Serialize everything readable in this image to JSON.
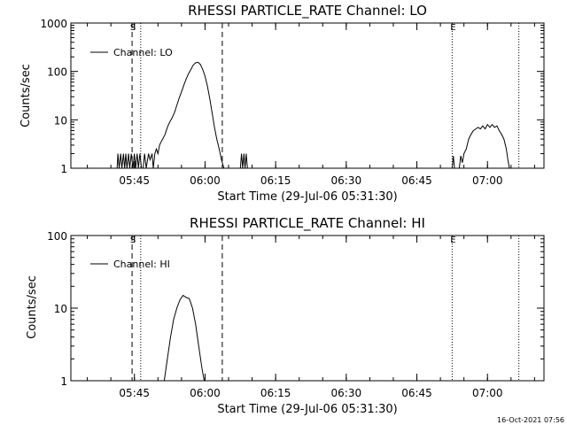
{
  "timestamp": "16-Oct-2021 07:56",
  "chart_data": [
    {
      "type": "line",
      "title": "RHESSI PARTICLE_RATE Channel: LO",
      "xlabel": "Start Time (29-Jul-06 05:31:30)",
      "ylabel": "Counts/sec",
      "y_scale": "log",
      "ylim": [
        1,
        1000
      ],
      "yticks": [
        {
          "v": 1,
          "label": "1"
        },
        {
          "v": 10,
          "label": "10"
        },
        {
          "v": 100,
          "label": "100"
        },
        {
          "v": 1000,
          "label": "1000"
        }
      ],
      "xlim": [
        "05:31:30",
        "07:12:00"
      ],
      "xticks": [
        "05:45",
        "06:00",
        "06:15",
        "06:30",
        "06:45",
        "07:00"
      ],
      "legend": {
        "label": "Channel: LO",
        "position": "top-left"
      },
      "markers": [
        {
          "time": "05:44:30",
          "style": "dashed",
          "label": "S"
        },
        {
          "time": "05:46:20",
          "style": "dotted",
          "label": ""
        },
        {
          "time": "06:03:40",
          "style": "dashed",
          "label": ""
        },
        {
          "time": "06:52:30",
          "style": "dotted",
          "label": "E"
        },
        {
          "time": "07:06:40",
          "style": "dotted",
          "label": ""
        }
      ],
      "series": [
        {
          "name": "Channel: LO",
          "segments": [
            [
              [
                "05:41:20",
                1
              ],
              [
                "05:41:30",
                2
              ],
              [
                "05:41:45",
                1
              ],
              [
                "05:42:05",
                2
              ],
              [
                "05:42:20",
                1
              ],
              [
                "05:42:40",
                2
              ],
              [
                "05:42:55",
                1
              ],
              [
                "05:43:10",
                2
              ],
              [
                "05:43:25",
                1
              ],
              [
                "05:43:45",
                2
              ],
              [
                "05:44:00",
                1
              ],
              [
                "05:44:20",
                2
              ],
              [
                "05:44:40",
                1
              ],
              [
                "05:45:00",
                2
              ],
              [
                "05:45:15",
                1
              ],
              [
                "05:45:35",
                2
              ],
              [
                "05:45:50",
                1
              ],
              [
                "05:46:10",
                2
              ],
              [
                "05:46:30",
                1
              ],
              [
                "05:46:50",
                1
              ],
              [
                "05:47:10",
                2
              ],
              [
                "05:47:30",
                1
              ],
              [
                "05:48:00",
                2
              ],
              [
                "05:48:20",
                1.5
              ],
              [
                "05:48:45",
                2
              ],
              [
                "05:49:00",
                1
              ],
              [
                "05:49:20",
                2
              ],
              [
                "05:49:40",
                2.5
              ],
              [
                "05:50:00",
                2
              ],
              [
                "05:50:20",
                3
              ],
              [
                "05:50:40",
                3.5
              ],
              [
                "05:51:00",
                4
              ],
              [
                "05:51:30",
                5
              ],
              [
                "05:52:00",
                7
              ],
              [
                "05:52:30",
                9
              ],
              [
                "05:53:00",
                11
              ],
              [
                "05:53:30",
                14
              ],
              [
                "05:54:00",
                20
              ],
              [
                "05:54:30",
                28
              ],
              [
                "05:55:00",
                38
              ],
              [
                "05:55:30",
                52
              ],
              [
                "05:56:00",
                70
              ],
              [
                "05:56:30",
                90
              ],
              [
                "05:57:00",
                110
              ],
              [
                "05:57:30",
                135
              ],
              [
                "05:58:00",
                150
              ],
              [
                "05:58:30",
                155
              ],
              [
                "05:59:00",
                140
              ],
              [
                "05:59:30",
                110
              ],
              [
                "06:00:00",
                80
              ],
              [
                "06:00:30",
                50
              ],
              [
                "06:01:00",
                28
              ],
              [
                "06:01:30",
                14
              ],
              [
                "06:02:00",
                7
              ],
              [
                "06:02:30",
                4
              ],
              [
                "06:03:00",
                2.5
              ],
              [
                "06:03:30",
                1.5
              ],
              [
                "06:04:00",
                1
              ]
            ],
            [
              [
                "06:07:30",
                1
              ],
              [
                "06:07:45",
                2
              ],
              [
                "06:08:00",
                1
              ],
              [
                "06:08:15",
                2
              ],
              [
                "06:08:30",
                1
              ],
              [
                "06:08:45",
                2
              ],
              [
                "06:09:00",
                1
              ]
            ],
            [
              [
                "06:52:30",
                1
              ],
              [
                "06:52:45",
                1.8
              ],
              [
                "06:53:00",
                1
              ],
              [
                "06:54:00",
                1
              ],
              [
                "06:54:20",
                1.8
              ],
              [
                "06:54:40",
                1.3
              ],
              [
                "06:55:00",
                2
              ],
              [
                "06:55:30",
                2.5
              ],
              [
                "06:56:00",
                4
              ],
              [
                "06:56:30",
                5
              ],
              [
                "06:57:00",
                6
              ],
              [
                "06:57:30",
                6.5
              ],
              [
                "06:58:00",
                7
              ],
              [
                "06:58:30",
                6.5
              ],
              [
                "06:59:00",
                7.5
              ],
              [
                "06:59:30",
                6.5
              ],
              [
                "07:00:00",
                8
              ],
              [
                "07:00:30",
                7
              ],
              [
                "07:01:00",
                8
              ],
              [
                "07:01:30",
                7
              ],
              [
                "07:02:00",
                7.5
              ],
              [
                "07:02:30",
                6
              ],
              [
                "07:03:00",
                5
              ],
              [
                "07:03:30",
                4
              ],
              [
                "07:04:00",
                2.5
              ],
              [
                "07:04:20",
                1.5
              ],
              [
                "07:04:40",
                1
              ]
            ]
          ]
        }
      ]
    },
    {
      "type": "line",
      "title": "RHESSI PARTICLE_RATE Channel: HI",
      "xlabel": "Start Time (29-Jul-06 05:31:30)",
      "ylabel": "Counts/sec",
      "y_scale": "log",
      "ylim": [
        1,
        100
      ],
      "yticks": [
        {
          "v": 1,
          "label": "1"
        },
        {
          "v": 10,
          "label": "10"
        },
        {
          "v": 100,
          "label": "100"
        }
      ],
      "xlim": [
        "05:31:30",
        "07:12:00"
      ],
      "xticks": [
        "05:45",
        "06:00",
        "06:15",
        "06:30",
        "06:45",
        "07:00"
      ],
      "legend": {
        "label": "Channel: HI",
        "position": "top-left"
      },
      "markers": [
        {
          "time": "05:44:30",
          "style": "dashed",
          "label": "S"
        },
        {
          "time": "05:46:20",
          "style": "dotted",
          "label": ""
        },
        {
          "time": "06:03:40",
          "style": "dashed",
          "label": ""
        },
        {
          "time": "06:52:30",
          "style": "dotted",
          "label": "E"
        },
        {
          "time": "07:06:40",
          "style": "dotted",
          "label": ""
        }
      ],
      "series": [
        {
          "name": "Channel: HI",
          "segments": [
            [
              [
                "05:51:20",
                1
              ],
              [
                "05:52:00",
                2
              ],
              [
                "05:52:40",
                4
              ],
              [
                "05:53:20",
                7
              ],
              [
                "05:54:00",
                10
              ],
              [
                "05:54:40",
                13
              ],
              [
                "05:55:20",
                15
              ],
              [
                "05:56:00",
                14
              ],
              [
                "05:56:40",
                13.5
              ],
              [
                "05:57:20",
                10
              ],
              [
                "05:58:00",
                6
              ],
              [
                "05:58:40",
                3
              ],
              [
                "05:59:20",
                1.5
              ],
              [
                "05:59:50",
                1
              ]
            ]
          ]
        }
      ]
    }
  ]
}
